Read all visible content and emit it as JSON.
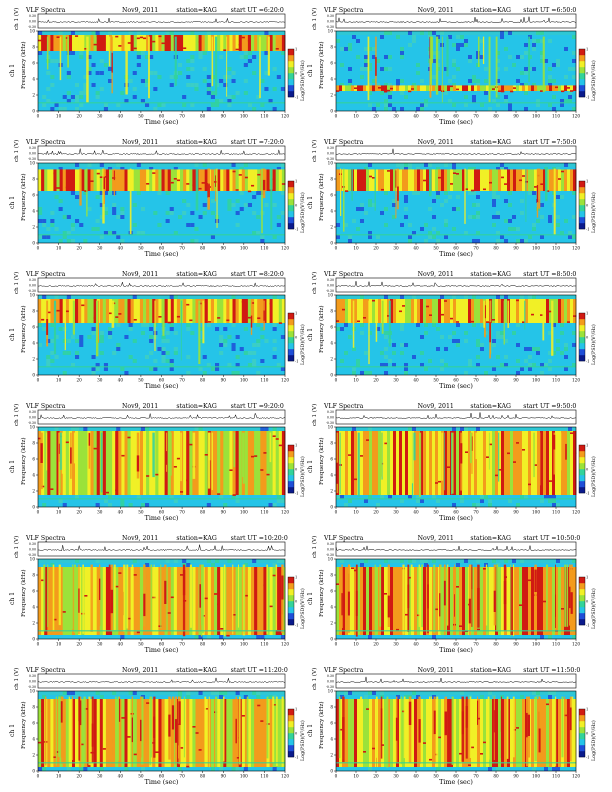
{
  "labels": {
    "header_title": "VLF Spectra",
    "header_date": "Nov9, 2011",
    "header_station": "station=KAG",
    "header_start_prefix": "start  UT =",
    "amp_axis_label": "ch 1 (V)",
    "freq_axis_label": "Frequency (kHz)",
    "channel_label": "ch 1",
    "time_axis_label": "Time (sec)",
    "colorbar_label": "Log(PSD)(V²/Hz)"
  },
  "colormap": [
    "#0a1a8c",
    "#1f4ed8",
    "#25c4e8",
    "#33d39a",
    "#9be23a",
    "#f1f026",
    "#f39b1c",
    "#d01a12"
  ],
  "chart_data": [
    {
      "type": "heatmap",
      "start_ut": "6:20:0",
      "x_label": "Time (sec)",
      "xlim": [
        0,
        120
      ],
      "x_ticks": [
        0,
        10,
        20,
        30,
        40,
        50,
        60,
        70,
        80,
        90,
        100,
        110,
        120
      ],
      "y_label": "Frequency (kHz)",
      "ylim": [
        0,
        10
      ],
      "y_ticks": [
        0,
        2,
        4,
        6,
        8,
        10
      ],
      "amp_ticks": [
        "0.30",
        "0.00",
        "-0.30"
      ],
      "colorbar_ticks": [
        "1",
        "0",
        "-1"
      ],
      "dominant_band_khz": [
        7.5,
        9.5
      ],
      "activity": "moderate"
    },
    {
      "type": "heatmap",
      "start_ut": "6:50:0",
      "x_label": "Time (sec)",
      "xlim": [
        0,
        120
      ],
      "x_ticks": [
        0,
        10,
        20,
        30,
        40,
        50,
        60,
        70,
        80,
        90,
        100,
        110,
        120
      ],
      "y_label": "Frequency (kHz)",
      "ylim": [
        0,
        10
      ],
      "y_ticks": [
        0,
        2,
        4,
        6,
        8,
        10
      ],
      "amp_ticks": [
        "0.30",
        "0.00",
        "-0.30"
      ],
      "colorbar_ticks": [
        "1",
        "0",
        "-1"
      ],
      "dominant_band_khz": [
        2.5,
        3.2
      ],
      "activity": "moderate"
    },
    {
      "type": "heatmap",
      "start_ut": "7:20:0",
      "x_label": "Time (sec)",
      "xlim": [
        0,
        120
      ],
      "x_ticks": [
        0,
        10,
        20,
        30,
        40,
        50,
        60,
        70,
        80,
        90,
        100,
        110,
        120
      ],
      "y_label": "Frequency (kHz)",
      "ylim": [
        0,
        10
      ],
      "y_ticks": [
        0,
        2,
        4,
        6,
        8,
        10
      ],
      "amp_ticks": [
        "0.30",
        "0.00",
        "-0.30"
      ],
      "colorbar_ticks": [
        "1",
        "0",
        "-1"
      ],
      "dominant_band_khz": [
        6.5,
        9.2
      ],
      "activity": "moderate"
    },
    {
      "type": "heatmap",
      "start_ut": "7:50:0",
      "x_label": "Time (sec)",
      "xlim": [
        0,
        120
      ],
      "x_ticks": [
        0,
        10,
        20,
        30,
        40,
        50,
        60,
        70,
        80,
        90,
        100,
        110,
        120
      ],
      "y_label": "Frequency (kHz)",
      "ylim": [
        0,
        10
      ],
      "y_ticks": [
        0,
        2,
        4,
        6,
        8,
        10
      ],
      "amp_ticks": [
        "0.30",
        "0.00",
        "-0.30"
      ],
      "colorbar_ticks": [
        "1",
        "0",
        "-1"
      ],
      "dominant_band_khz": [
        6.5,
        9.2
      ],
      "activity": "moderate"
    },
    {
      "type": "heatmap",
      "start_ut": "8:20:0",
      "x_label": "Time (sec)",
      "xlim": [
        0,
        120
      ],
      "x_ticks": [
        0,
        10,
        20,
        30,
        40,
        50,
        60,
        70,
        80,
        90,
        100,
        110,
        120
      ],
      "y_label": "Frequency (kHz)",
      "ylim": [
        0,
        10
      ],
      "y_ticks": [
        0,
        2,
        4,
        6,
        8,
        10
      ],
      "amp_ticks": [
        "0.30",
        "0.00",
        "-0.30"
      ],
      "colorbar_ticks": [
        "1",
        "0",
        "-1"
      ],
      "dominant_band_khz": [
        6.5,
        9.5
      ],
      "activity": "moderate"
    },
    {
      "type": "heatmap",
      "start_ut": "8:50:0",
      "x_label": "Time (sec)",
      "xlim": [
        0,
        120
      ],
      "x_ticks": [
        0,
        10,
        20,
        30,
        40,
        50,
        60,
        70,
        80,
        90,
        100,
        110,
        120
      ],
      "y_label": "Frequency (kHz)",
      "ylim": [
        0,
        10
      ],
      "y_ticks": [
        0,
        2,
        4,
        6,
        8,
        10
      ],
      "amp_ticks": [
        "0.30",
        "0.00",
        "-0.30"
      ],
      "colorbar_ticks": [
        "1",
        "0",
        "-1"
      ],
      "dominant_band_khz": [
        6.5,
        9.5
      ],
      "activity": "moderate"
    },
    {
      "type": "heatmap",
      "start_ut": "9:20:0",
      "x_label": "Time (sec)",
      "xlim": [
        0,
        120
      ],
      "x_ticks": [
        0,
        10,
        20,
        30,
        40,
        50,
        60,
        70,
        80,
        90,
        100,
        110,
        120
      ],
      "y_label": "Frequency (kHz)",
      "ylim": [
        0,
        10
      ],
      "y_ticks": [
        0,
        2,
        4,
        6,
        8,
        10
      ],
      "amp_ticks": [
        "0.30",
        "0.00",
        "-0.30"
      ],
      "colorbar_ticks": [
        "1",
        "0",
        "-1"
      ],
      "dominant_band_khz": [
        1.5,
        9.5
      ],
      "activity": "high"
    },
    {
      "type": "heatmap",
      "start_ut": "9:50:0",
      "x_label": "Time (sec)",
      "xlim": [
        0,
        120
      ],
      "x_ticks": [
        0,
        10,
        20,
        30,
        40,
        50,
        60,
        70,
        80,
        90,
        100,
        110,
        120
      ],
      "y_label": "Frequency (kHz)",
      "ylim": [
        0,
        10
      ],
      "y_ticks": [
        0,
        2,
        4,
        6,
        8,
        10
      ],
      "amp_ticks": [
        "0.30",
        "0.00",
        "-0.30"
      ],
      "colorbar_ticks": [
        "1",
        "0",
        "-1"
      ],
      "dominant_band_khz": [
        1.5,
        9.5
      ],
      "activity": "high"
    },
    {
      "type": "heatmap",
      "start_ut": "10:20:0",
      "x_label": "Time (sec)",
      "xlim": [
        0,
        120
      ],
      "x_ticks": [
        0,
        10,
        20,
        30,
        40,
        50,
        60,
        70,
        80,
        90,
        100,
        110,
        120
      ],
      "y_label": "Frequency (kHz)",
      "ylim": [
        0,
        10
      ],
      "y_ticks": [
        0,
        2,
        4,
        6,
        8,
        10
      ],
      "amp_ticks": [
        "0.30",
        "0.00",
        "-0.30"
      ],
      "colorbar_ticks": [
        "1",
        "0",
        "-1"
      ],
      "dominant_band_khz": [
        0.5,
        9.0
      ],
      "activity": "broadband"
    },
    {
      "type": "heatmap",
      "start_ut": "10:50:0",
      "x_label": "Time (sec)",
      "xlim": [
        0,
        120
      ],
      "x_ticks": [
        0,
        10,
        20,
        30,
        40,
        50,
        60,
        70,
        80,
        90,
        100,
        110,
        120
      ],
      "y_label": "Frequency (kHz)",
      "ylim": [
        0,
        10
      ],
      "y_ticks": [
        0,
        2,
        4,
        6,
        8,
        10
      ],
      "amp_ticks": [
        "0.30",
        "0.00",
        "-0.30"
      ],
      "colorbar_ticks": [
        "1",
        "0",
        "-1"
      ],
      "dominant_band_khz": [
        0.5,
        9.0
      ],
      "activity": "broadband"
    },
    {
      "type": "heatmap",
      "start_ut": "11:20:0",
      "x_label": "Time (sec)",
      "xlim": [
        0,
        120
      ],
      "x_ticks": [
        0,
        10,
        20,
        30,
        40,
        50,
        60,
        70,
        80,
        90,
        100,
        110,
        120
      ],
      "y_label": "Frequency (kHz)",
      "ylim": [
        0,
        10
      ],
      "y_ticks": [
        0,
        2,
        4,
        6,
        8,
        10
      ],
      "amp_ticks": [
        "0.30",
        "0.00",
        "-0.30"
      ],
      "colorbar_ticks": [
        "1",
        "0",
        "-1"
      ],
      "dominant_band_khz": [
        0.5,
        9.0
      ],
      "activity": "broadband"
    },
    {
      "type": "heatmap",
      "start_ut": "11:50:0",
      "x_label": "Time (sec)",
      "xlim": [
        0,
        120
      ],
      "x_ticks": [
        0,
        10,
        20,
        30,
        40,
        50,
        60,
        70,
        80,
        90,
        100,
        110,
        120
      ],
      "y_label": "Frequency (kHz)",
      "ylim": [
        0,
        10
      ],
      "y_ticks": [
        0,
        2,
        4,
        6,
        8,
        10
      ],
      "amp_ticks": [
        "0.30",
        "0.00",
        "-0.30"
      ],
      "colorbar_ticks": [
        "1",
        "0",
        "-1"
      ],
      "dominant_band_khz": [
        0.5,
        9.0
      ],
      "activity": "broadband"
    }
  ]
}
